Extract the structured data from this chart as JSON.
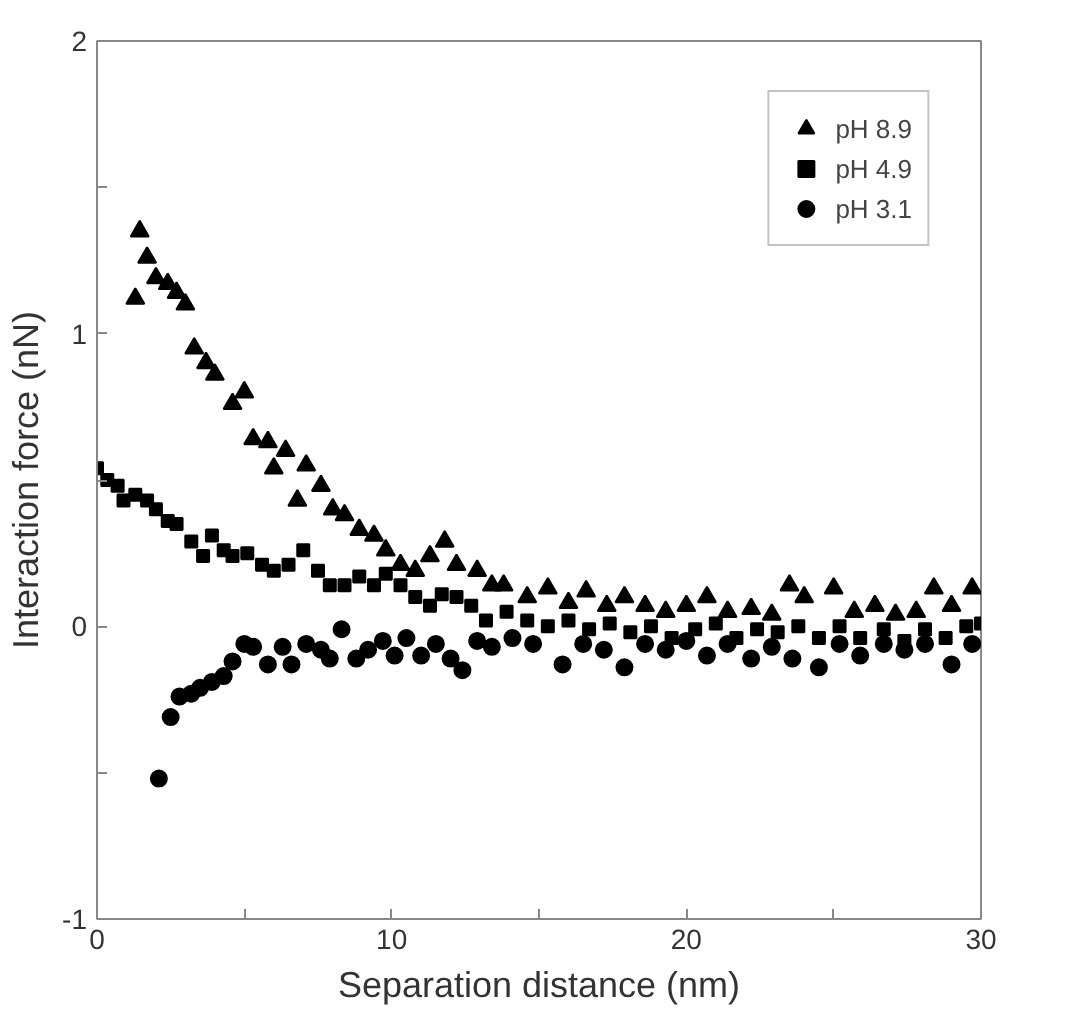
{
  "chart_data": {
    "type": "scatter",
    "xlabel": "Separation distance (nm)",
    "ylabel": "Interaction force (nN)",
    "xlim": [
      0,
      30
    ],
    "ylim": [
      -1,
      2
    ],
    "xticks": [
      0,
      {
        "value": 5,
        "label": null
      },
      10,
      {
        "value": 15,
        "label": null
      },
      20,
      {
        "value": 25,
        "label": null
      },
      30
    ],
    "yticks": [
      -1,
      {
        "value": -0.5,
        "label": null
      },
      0,
      {
        "value": 0.5,
        "label": null
      },
      1,
      {
        "value": 1.5,
        "label": null
      },
      2
    ],
    "grid": false,
    "legend": "top right",
    "series": [
      {
        "name": "pH 8.9",
        "color": "#000000",
        "marker": "triangle",
        "x": [
          1.3,
          1.45,
          1.7,
          2.0,
          2.4,
          2.7,
          3.0,
          3.3,
          3.7,
          4.0,
          4.6,
          5.0,
          5.3,
          5.8,
          6.0,
          6.4,
          6.8,
          7.1,
          7.6,
          8.0,
          8.4,
          8.9,
          9.4,
          9.8,
          10.3,
          10.8,
          11.3,
          11.8,
          12.2,
          12.9,
          13.4,
          13.8,
          14.6,
          15.3,
          16.0,
          16.6,
          17.3,
          17.9,
          18.6,
          19.3,
          20.0,
          20.7,
          21.4,
          22.2,
          22.9,
          23.5,
          24.0,
          25.0,
          25.7,
          26.4,
          27.1,
          27.8,
          28.4,
          29.0,
          29.7
        ],
        "values": [
          1.12,
          1.35,
          1.26,
          1.19,
          1.17,
          1.14,
          1.1,
          0.95,
          0.9,
          0.86,
          0.76,
          0.8,
          0.64,
          0.63,
          0.54,
          0.6,
          0.43,
          0.55,
          0.48,
          0.4,
          0.38,
          0.33,
          0.31,
          0.26,
          0.21,
          0.19,
          0.24,
          0.29,
          0.21,
          0.19,
          0.14,
          0.14,
          0.1,
          0.13,
          0.08,
          0.12,
          0.07,
          0.1,
          0.07,
          0.05,
          0.07,
          0.1,
          0.05,
          0.06,
          0.04,
          0.14,
          0.1,
          0.13,
          0.05,
          0.07,
          0.04,
          0.05,
          0.13,
          0.07,
          0.13
        ]
      },
      {
        "name": "pH 4.9",
        "color": "#000000",
        "marker": "square",
        "x": [
          0,
          0.35,
          0.7,
          0.9,
          1.3,
          1.7,
          2.0,
          2.4,
          2.7,
          3.2,
          3.6,
          3.9,
          4.3,
          4.6,
          5.1,
          5.6,
          6.0,
          6.5,
          7.0,
          7.5,
          7.9,
          8.4,
          8.9,
          9.4,
          9.8,
          10.3,
          10.8,
          11.3,
          11.7,
          12.2,
          12.7,
          13.2,
          13.9,
          14.6,
          15.3,
          16.0,
          16.7,
          17.4,
          18.1,
          18.8,
          19.5,
          20.3,
          21.0,
          21.7,
          22.4,
          23.1,
          23.8,
          24.5,
          25.2,
          25.9,
          26.7,
          27.4,
          28.1,
          28.8,
          29.5,
          30.0
        ],
        "values": [
          0.54,
          0.5,
          0.48,
          0.43,
          0.45,
          0.43,
          0.4,
          0.36,
          0.35,
          0.29,
          0.24,
          0.31,
          0.26,
          0.24,
          0.25,
          0.21,
          0.19,
          0.21,
          0.26,
          0.19,
          0.14,
          0.14,
          0.17,
          0.14,
          0.18,
          0.14,
          0.1,
          0.07,
          0.11,
          0.1,
          0.07,
          0.02,
          0.05,
          0.02,
          0.0,
          0.02,
          -0.01,
          0.01,
          -0.02,
          0.0,
          -0.04,
          -0.01,
          0.01,
          -0.04,
          -0.01,
          -0.02,
          0.0,
          -0.04,
          0.0,
          -0.04,
          -0.01,
          -0.05,
          -0.01,
          -0.04,
          0.0,
          0.01
        ]
      },
      {
        "name": "pH 3.1",
        "color": "#000000",
        "marker": "circle",
        "x": [
          2.1,
          2.5,
          2.8,
          3.2,
          3.5,
          3.9,
          4.3,
          4.6,
          5.0,
          5.3,
          5.8,
          6.3,
          6.6,
          7.1,
          7.6,
          7.9,
          8.3,
          8.8,
          9.2,
          9.7,
          10.1,
          10.5,
          11.0,
          11.5,
          12.0,
          12.4,
          12.9,
          13.4,
          14.1,
          14.8,
          15.8,
          16.5,
          17.2,
          17.9,
          18.6,
          19.3,
          20.0,
          20.7,
          21.4,
          22.2,
          22.9,
          23.6,
          24.5,
          25.2,
          25.9,
          26.7,
          27.4,
          28.1,
          29.0,
          29.7
        ],
        "values": [
          -0.52,
          -0.31,
          -0.24,
          -0.23,
          -0.21,
          -0.19,
          -0.17,
          -0.12,
          -0.06,
          -0.07,
          -0.13,
          -0.07,
          -0.13,
          -0.06,
          -0.08,
          -0.11,
          -0.01,
          -0.11,
          -0.08,
          -0.05,
          -0.1,
          -0.04,
          -0.1,
          -0.06,
          -0.11,
          -0.15,
          -0.05,
          -0.07,
          -0.04,
          -0.06,
          -0.13,
          -0.06,
          -0.08,
          -0.14,
          -0.06,
          -0.08,
          -0.05,
          -0.1,
          -0.06,
          -0.11,
          -0.07,
          -0.11,
          -0.14,
          -0.06,
          -0.1,
          -0.06,
          -0.08,
          -0.06,
          -0.13,
          -0.06
        ]
      }
    ]
  }
}
